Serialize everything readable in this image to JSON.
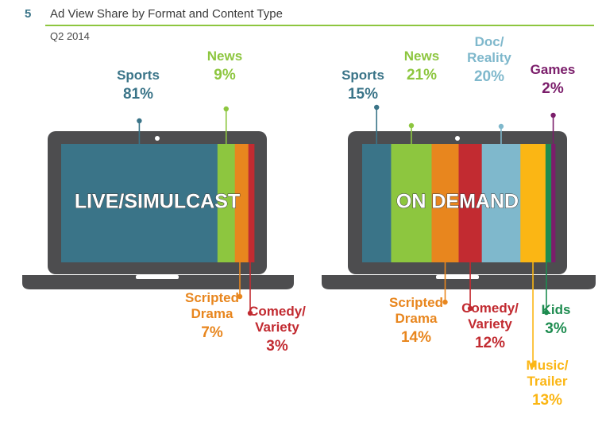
{
  "header": {
    "figure_number": "5",
    "title": "Ad View Share by Format and Content Type",
    "subtitle": "Q2 2014",
    "accent_color": "#8dc63f"
  },
  "chart_data": [
    {
      "type": "bar",
      "stacked": true,
      "screen_label": "LIVE/SIMULCAST",
      "total": 100,
      "categories": [
        "Sports",
        "News",
        "Scripted Drama",
        "Comedy/ Variety"
      ],
      "values": [
        81,
        9,
        7,
        3
      ],
      "value_labels": [
        "81%",
        "9%",
        "7%",
        "3%"
      ],
      "colors": [
        "#3a7488",
        "#8dc63f",
        "#e8861e",
        "#c22b31"
      ]
    },
    {
      "type": "bar",
      "stacked": true,
      "screen_label": "ON DEMAND",
      "total": 100,
      "categories": [
        "Sports",
        "News",
        "Scripted Drama",
        "Comedy/ Variety",
        "Doc/ Reality",
        "Music/ Trailer",
        "Kids",
        "Games"
      ],
      "values": [
        15,
        21,
        14,
        12,
        20,
        13,
        3,
        2
      ],
      "value_labels": [
        "15%",
        "21%",
        "14%",
        "12%",
        "20%",
        "13%",
        "3%",
        "2%"
      ],
      "colors": [
        "#3a7488",
        "#8dc63f",
        "#e8861e",
        "#c22b31",
        "#7fb8cc",
        "#fbb614",
        "#1e8c50",
        "#7b1e6b"
      ]
    }
  ]
}
